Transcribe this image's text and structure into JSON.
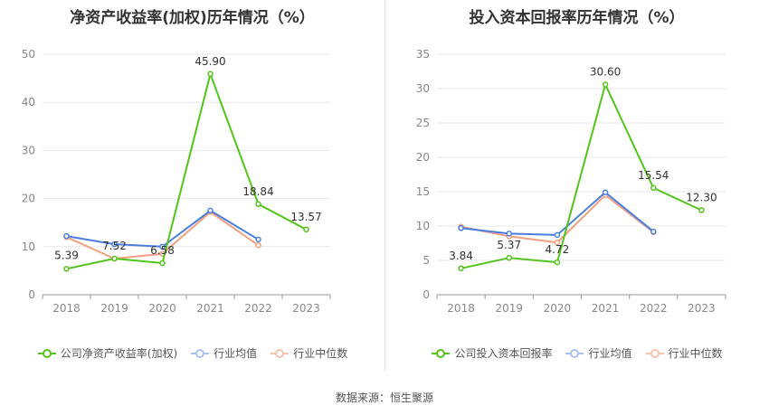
{
  "source_text": "数据来源：恒生聚源",
  "chart_data": [
    {
      "type": "line",
      "title": "净资产收益率(加权)历年情况（%）",
      "categories": [
        "2018",
        "2019",
        "2020",
        "2021",
        "2022",
        "2023"
      ],
      "ylim": [
        0,
        50
      ],
      "yticks": [
        0,
        10,
        20,
        30,
        40,
        50
      ],
      "series": [
        {
          "name": "公司净资产收益率(加权)",
          "color": "#52c41a",
          "values": [
            5.39,
            7.52,
            6.58,
            45.9,
            18.84,
            13.57
          ],
          "labels": [
            "5.39",
            "7.52",
            "6.58",
            "45.90",
            "18.84",
            "13.57"
          ]
        },
        {
          "name": "行业均值",
          "color": "#4a7fe0",
          "values": [
            12.2,
            10.5,
            10.0,
            17.5,
            11.5,
            null
          ]
        },
        {
          "name": "行业中位数",
          "color": "#f0a080",
          "values": [
            12.0,
            7.5,
            8.5,
            17.2,
            10.3,
            null
          ]
        }
      ]
    },
    {
      "type": "line",
      "title": "投入资本回报率历年情况（%）",
      "categories": [
        "2018",
        "2019",
        "2020",
        "2021",
        "2022",
        "2023"
      ],
      "ylim": [
        0,
        35
      ],
      "yticks": [
        0,
        5,
        10,
        15,
        20,
        25,
        30,
        35
      ],
      "series": [
        {
          "name": "公司投入资本回报率",
          "color": "#52c41a",
          "values": [
            3.84,
            5.37,
            4.72,
            30.6,
            15.54,
            12.3
          ],
          "labels": [
            "3.84",
            "5.37",
            "4.72",
            "30.60",
            "15.54",
            "12.30"
          ]
        },
        {
          "name": "行业均值",
          "color": "#4a7fe0",
          "values": [
            9.7,
            8.9,
            8.7,
            14.9,
            9.2,
            null
          ]
        },
        {
          "name": "行业中位数",
          "color": "#f0a080",
          "values": [
            9.9,
            8.5,
            7.6,
            14.5,
            9.1,
            null
          ]
        }
      ]
    }
  ]
}
